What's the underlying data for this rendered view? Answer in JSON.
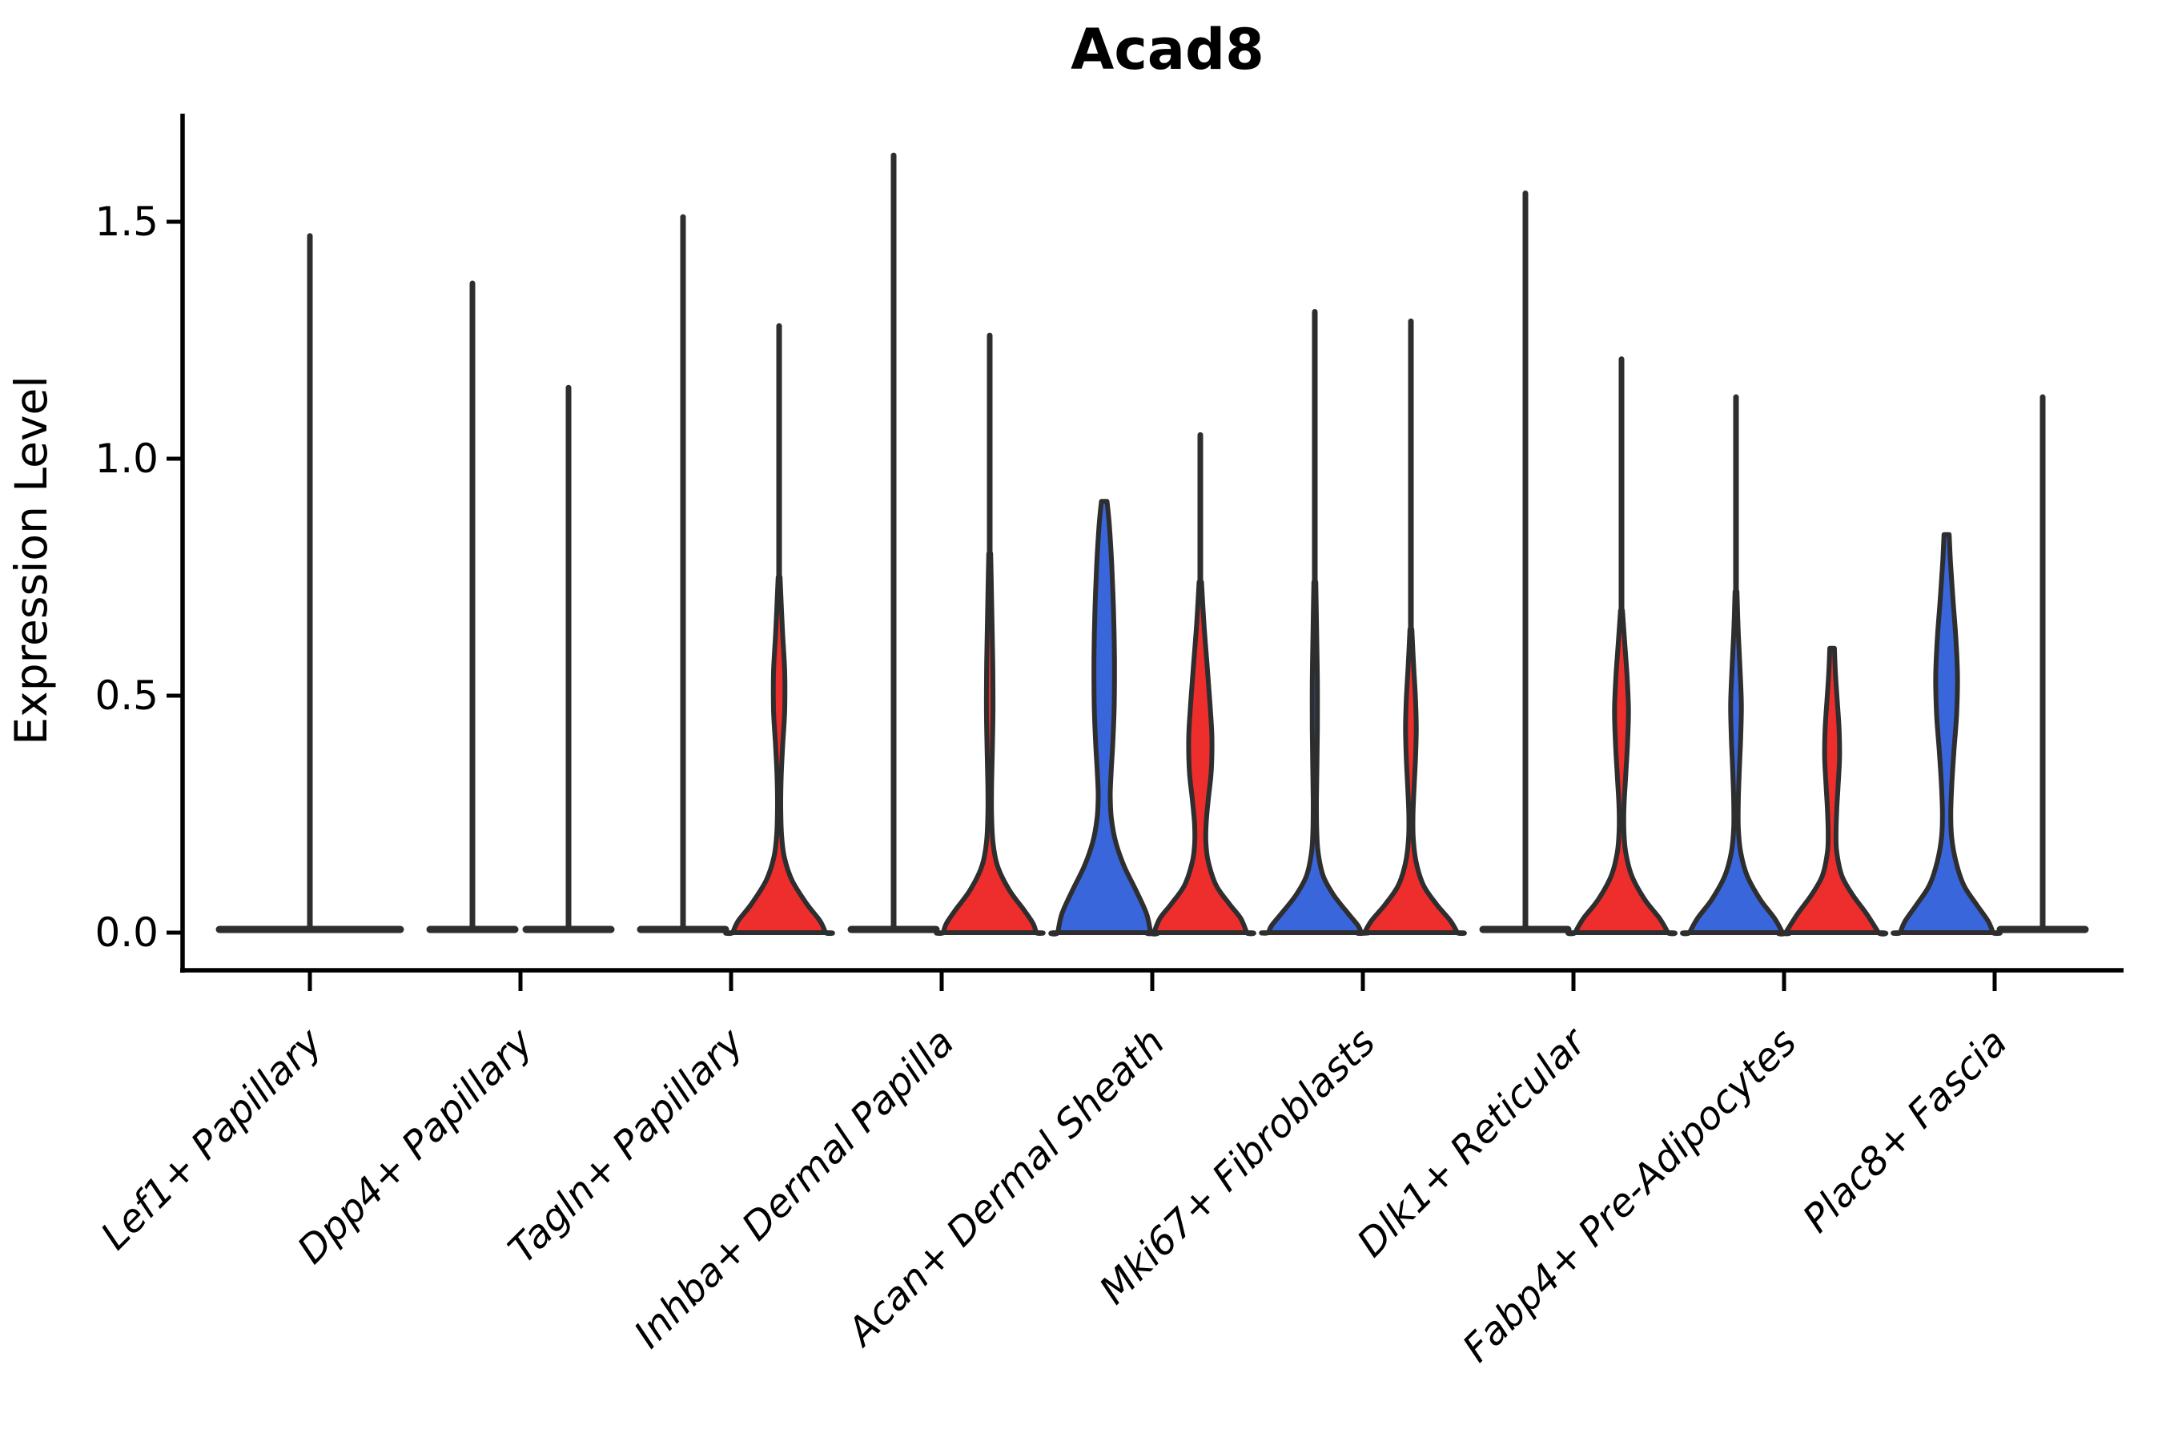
{
  "chart_data": {
    "type": "violin",
    "title": "Acad8",
    "ylabel": "Expression Level",
    "xlabel": "",
    "legend": "none",
    "grid": false,
    "background_color": "#ffffff",
    "colors": {
      "blue": "#3A66DC",
      "red": "#EE2D2D",
      "outline": "#2E2E2E",
      "text": "#000000"
    },
    "yticks": [
      {
        "label": "0.0",
        "value": 0.0
      },
      {
        "label": "0.5",
        "value": 0.5
      },
      {
        "label": "1.0",
        "value": 1.0
      },
      {
        "label": "1.5",
        "value": 1.5
      }
    ],
    "ylim": [
      -0.09,
      1.75
    ],
    "categories": [
      "Lef1+ Papillary",
      "Dpp4+ Papillary",
      "Tagln+ Papillary",
      "Inhba+ Dermal Papilla",
      "Acan+ Dermal Sheath",
      "Mki67+ Fibroblasts",
      "Dlk1+ Reticular",
      "Fabp4+ Pre-Adipocytes",
      "Plac8+ Fascia"
    ],
    "violins": [
      {
        "category_index": 0,
        "category": "Lef1+ Papillary",
        "side": "full",
        "fill": "none",
        "flat": true,
        "spike_max": 1.47,
        "profile": null
      },
      {
        "category_index": 1,
        "category": "Dpp4+ Papillary",
        "side": "left",
        "fill": "none",
        "flat": true,
        "spike_max": 1.37,
        "profile": null
      },
      {
        "category_index": 1,
        "category": "Dpp4+ Papillary",
        "side": "right",
        "fill": "none",
        "flat": true,
        "spike_max": 1.15,
        "profile": null
      },
      {
        "category_index": 2,
        "category": "Tagln+ Papillary",
        "side": "left",
        "fill": "none",
        "flat": true,
        "spike_max": 1.51,
        "profile": null
      },
      {
        "category_index": 2,
        "category": "Tagln+ Papillary",
        "side": "right",
        "fill": "red",
        "flat": false,
        "spike_max": 1.28,
        "profile": [
          [
            0.75,
            0.02
          ],
          [
            0.64,
            0.07
          ],
          [
            0.55,
            0.12
          ],
          [
            0.47,
            0.12
          ],
          [
            0.4,
            0.08
          ],
          [
            0.33,
            0.045
          ],
          [
            0.27,
            0.035
          ],
          [
            0.21,
            0.05
          ],
          [
            0.16,
            0.11
          ],
          [
            0.11,
            0.28
          ],
          [
            0.06,
            0.6
          ],
          [
            0.025,
            0.88
          ],
          [
            0,
            1
          ]
        ]
      },
      {
        "category_index": 3,
        "category": "Inhba+ Dermal Papilla",
        "side": "left",
        "fill": "none",
        "flat": true,
        "spike_max": 1.64,
        "profile": null
      },
      {
        "category_index": 3,
        "category": "Inhba+ Dermal Papilla",
        "side": "right",
        "fill": "red",
        "flat": false,
        "spike_max": 1.26,
        "profile": [
          [
            0.8,
            0.02
          ],
          [
            0.68,
            0.045
          ],
          [
            0.57,
            0.065
          ],
          [
            0.47,
            0.07
          ],
          [
            0.38,
            0.055
          ],
          [
            0.31,
            0.04
          ],
          [
            0.25,
            0.04
          ],
          [
            0.19,
            0.07
          ],
          [
            0.14,
            0.17
          ],
          [
            0.09,
            0.42
          ],
          [
            0.05,
            0.72
          ],
          [
            0.02,
            0.93
          ],
          [
            0,
            1
          ]
        ]
      },
      {
        "category_index": 4,
        "category": "Acan+ Dermal Sheath",
        "side": "left",
        "fill": "blue",
        "flat": false,
        "spike_max": null,
        "cap_max": 0.91,
        "profile": [
          [
            0.91,
            0.06
          ],
          [
            0.86,
            0.11
          ],
          [
            0.78,
            0.16
          ],
          [
            0.68,
            0.2
          ],
          [
            0.58,
            0.22
          ],
          [
            0.48,
            0.215
          ],
          [
            0.4,
            0.185
          ],
          [
            0.34,
            0.15
          ],
          [
            0.29,
            0.13
          ],
          [
            0.24,
            0.155
          ],
          [
            0.19,
            0.25
          ],
          [
            0.14,
            0.43
          ],
          [
            0.09,
            0.68
          ],
          [
            0.04,
            0.91
          ],
          [
            0,
            1
          ]
        ]
      },
      {
        "category_index": 4,
        "category": "Acan+ Dermal Sheath",
        "side": "right",
        "fill": "red",
        "flat": false,
        "spike_max": 1.05,
        "profile": [
          [
            0.74,
            0.025
          ],
          [
            0.65,
            0.08
          ],
          [
            0.56,
            0.15
          ],
          [
            0.48,
            0.21
          ],
          [
            0.41,
            0.25
          ],
          [
            0.34,
            0.235
          ],
          [
            0.28,
            0.17
          ],
          [
            0.23,
            0.125
          ],
          [
            0.19,
            0.12
          ],
          [
            0.15,
            0.17
          ],
          [
            0.1,
            0.34
          ],
          [
            0.06,
            0.63
          ],
          [
            0.03,
            0.87
          ],
          [
            0,
            1
          ]
        ]
      },
      {
        "category_index": 5,
        "category": "Mki67+ Fibroblasts",
        "side": "left",
        "fill": "blue",
        "flat": false,
        "spike_max": 1.31,
        "profile": [
          [
            0.74,
            0.02
          ],
          [
            0.63,
            0.04
          ],
          [
            0.53,
            0.055
          ],
          [
            0.43,
            0.055
          ],
          [
            0.35,
            0.045
          ],
          [
            0.28,
            0.035
          ],
          [
            0.22,
            0.04
          ],
          [
            0.17,
            0.07
          ],
          [
            0.12,
            0.18
          ],
          [
            0.08,
            0.4
          ],
          [
            0.04,
            0.72
          ],
          [
            0.015,
            0.93
          ],
          [
            0,
            1
          ]
        ]
      },
      {
        "category_index": 5,
        "category": "Mki67+ Fibroblasts",
        "side": "right",
        "fill": "red",
        "flat": false,
        "spike_max": 1.29,
        "profile": [
          [
            0.64,
            0.02
          ],
          [
            0.56,
            0.06
          ],
          [
            0.49,
            0.1
          ],
          [
            0.43,
            0.115
          ],
          [
            0.37,
            0.1
          ],
          [
            0.31,
            0.07
          ],
          [
            0.25,
            0.045
          ],
          [
            0.2,
            0.05
          ],
          [
            0.15,
            0.11
          ],
          [
            0.1,
            0.27
          ],
          [
            0.06,
            0.55
          ],
          [
            0.025,
            0.85
          ],
          [
            0,
            1
          ]
        ]
      },
      {
        "category_index": 6,
        "category": "Dlk1+ Reticular",
        "side": "left",
        "fill": "none",
        "flat": true,
        "spike_max": 1.56,
        "profile": null
      },
      {
        "category_index": 6,
        "category": "Dlk1+ Reticular",
        "side": "right",
        "fill": "red",
        "flat": false,
        "spike_max": 1.21,
        "profile": [
          [
            0.68,
            0.02
          ],
          [
            0.61,
            0.07
          ],
          [
            0.54,
            0.12
          ],
          [
            0.47,
            0.15
          ],
          [
            0.4,
            0.13
          ],
          [
            0.33,
            0.09
          ],
          [
            0.27,
            0.055
          ],
          [
            0.22,
            0.05
          ],
          [
            0.17,
            0.09
          ],
          [
            0.12,
            0.22
          ],
          [
            0.07,
            0.5
          ],
          [
            0.03,
            0.82
          ],
          [
            0,
            1
          ]
        ]
      },
      {
        "category_index": 7,
        "category": "Fabp4+ Pre-Adipocytes",
        "side": "left",
        "fill": "blue",
        "flat": false,
        "spike_max": 1.13,
        "profile": [
          [
            0.72,
            0.02
          ],
          [
            0.63,
            0.05
          ],
          [
            0.55,
            0.09
          ],
          [
            0.48,
            0.115
          ],
          [
            0.41,
            0.1
          ],
          [
            0.34,
            0.07
          ],
          [
            0.28,
            0.05
          ],
          [
            0.22,
            0.05
          ],
          [
            0.17,
            0.1
          ],
          [
            0.12,
            0.24
          ],
          [
            0.07,
            0.52
          ],
          [
            0.03,
            0.83
          ],
          [
            0,
            1
          ]
        ]
      },
      {
        "category_index": 7,
        "category": "Fabp4+ Pre-Adipocytes",
        "side": "right",
        "fill": "red",
        "flat": false,
        "spike_max": null,
        "cap_max": 0.6,
        "profile": [
          [
            0.6,
            0.05
          ],
          [
            0.55,
            0.07
          ],
          [
            0.49,
            0.11
          ],
          [
            0.43,
            0.15
          ],
          [
            0.37,
            0.16
          ],
          [
            0.31,
            0.13
          ],
          [
            0.26,
            0.1
          ],
          [
            0.21,
            0.085
          ],
          [
            0.17,
            0.1
          ],
          [
            0.12,
            0.21
          ],
          [
            0.08,
            0.44
          ],
          [
            0.04,
            0.74
          ],
          [
            0,
            1
          ]
        ]
      },
      {
        "category_index": 8,
        "category": "Plac8+ Fascia",
        "side": "left",
        "fill": "blue",
        "flat": false,
        "spike_max": null,
        "cap_max": 0.84,
        "profile": [
          [
            0.84,
            0.055
          ],
          [
            0.78,
            0.085
          ],
          [
            0.7,
            0.14
          ],
          [
            0.62,
            0.2
          ],
          [
            0.54,
            0.235
          ],
          [
            0.46,
            0.215
          ],
          [
            0.38,
            0.155
          ],
          [
            0.31,
            0.11
          ],
          [
            0.25,
            0.09
          ],
          [
            0.2,
            0.11
          ],
          [
            0.15,
            0.2
          ],
          [
            0.1,
            0.37
          ],
          [
            0.06,
            0.64
          ],
          [
            0.025,
            0.89
          ],
          [
            0,
            1
          ]
        ]
      },
      {
        "category_index": 8,
        "category": "Plac8+ Fascia",
        "side": "right",
        "fill": "none",
        "flat": true,
        "spike_max": 1.13,
        "profile": null
      }
    ]
  }
}
